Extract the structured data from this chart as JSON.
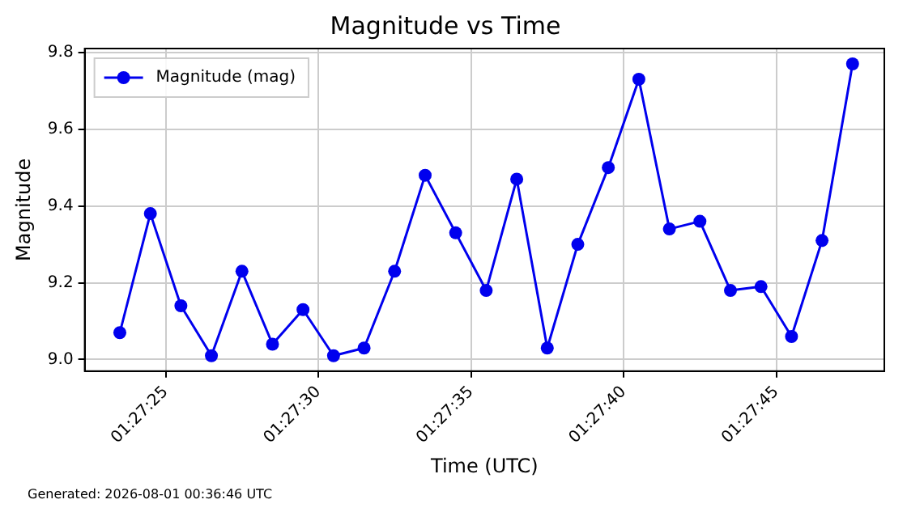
{
  "chart_data": {
    "type": "line",
    "title": "Magnitude vs Time",
    "xlabel": "Time (UTC)",
    "ylabel": "Magnitude",
    "annotations": [
      "Generated: 2026-08-01 00:36:46 UTC"
    ],
    "x": [
      1.4565278,
      1.4568056,
      1.4570833,
      1.4573611,
      1.4576389,
      1.4579167,
      1.4581944,
      1.4584722,
      1.45875,
      1.4590278,
      1.4593056,
      1.4595833,
      1.4598611,
      1.4601389,
      1.4604167,
      1.4606944,
      1.4609722,
      1.46125,
      1.4615278,
      1.4618056,
      1.4620833,
      1.4623611,
      1.4626389,
      1.4629167,
      1.4631944
    ],
    "series": [
      {
        "name": "Magnitude (mag)",
        "color": "#0000ee",
        "values": [
          9.07,
          9.38,
          9.14,
          9.01,
          9.23,
          9.04,
          9.13,
          9.01,
          9.03,
          9.23,
          9.48,
          9.33,
          9.18,
          9.47,
          9.03,
          9.3,
          9.5,
          9.73,
          9.34,
          9.36,
          9.18,
          9.19,
          9.06,
          9.31,
          9.77
        ]
      }
    ],
    "xlim": [
      1.4562083,
      1.4634833
    ],
    "xticks": [
      {
        "value": 1.4569444,
        "label": "01:27:25"
      },
      {
        "value": 1.4583333,
        "label": "01:27:30"
      },
      {
        "value": 1.4597222,
        "label": "01:27:35"
      },
      {
        "value": 1.4611111,
        "label": "01:27:40"
      },
      {
        "value": 1.4625,
        "label": "01:27:45"
      }
    ],
    "ylim": [
      8.97,
      9.81
    ],
    "yticks": [
      {
        "value": 9,
        "label": "9.0"
      },
      {
        "value": 9.2,
        "label": "9.2"
      },
      {
        "value": 9.4,
        "label": "9.4"
      },
      {
        "value": 9.6,
        "label": "9.6"
      },
      {
        "value": 9.8,
        "label": "9.8"
      }
    ],
    "grid": true,
    "legend": "top left",
    "marker": "circle",
    "line_style": "solid"
  }
}
